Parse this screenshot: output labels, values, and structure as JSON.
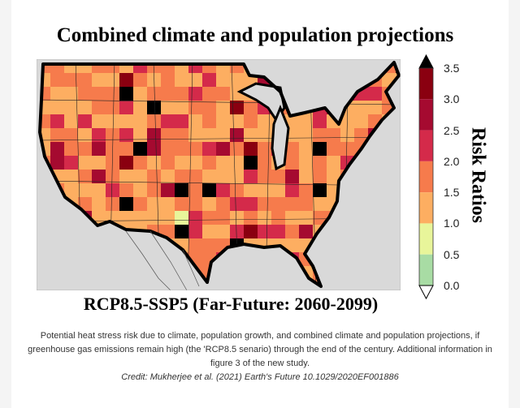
{
  "figure": {
    "title": "Combined climate and population projections",
    "subtitle": "RCP8.5-SSP5 (Far-Future: 2060-2099)",
    "colorbar": {
      "label": "Risk Ratios",
      "ticks": [
        "0.0",
        "0.5",
        "1.0",
        "1.5",
        "2.0",
        "2.5",
        "3.0",
        "3.5"
      ],
      "bins": [
        {
          "range": [
            0,
            0.5
          ],
          "color": "#a8dca4"
        },
        {
          "range": [
            0.5,
            1.0
          ],
          "color": "#e8f59a"
        },
        {
          "range": [
            1.0,
            1.5
          ],
          "color": "#fdae61"
        },
        {
          "range": [
            1.5,
            2.0
          ],
          "color": "#f67b4c"
        },
        {
          "range": [
            2.0,
            2.5
          ],
          "color": "#d42a4a"
        },
        {
          "range": [
            2.5,
            3.0
          ],
          "color": "#a50a30"
        },
        {
          "range": [
            3.0,
            3.5
          ],
          "color": "#8a0010"
        }
      ],
      "over_color": "#000000",
      "under_color": "#ffffff"
    },
    "background_color": "#d9d9d9"
  },
  "caption": {
    "text": "Potential heat stress risk due to climate, population growth, and combined climate and population projections, if greenhouse gas emissions remain high (the 'RCP8.5 senario) through the end of the century. Additional information in figure 3 of the new study.",
    "credit": "Credit: Mukherjee et al. (2021) Earth's Future 10.1029/2020EF001886"
  }
}
